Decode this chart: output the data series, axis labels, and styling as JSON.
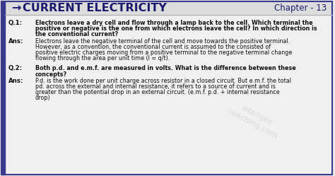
{
  "bg_color": "#e8e8e8",
  "border_color": "#3a3a8c",
  "header_bg": "#dcdcdc",
  "header_text": "CURRENT ELECTRICITY",
  "header_arrow": "→",
  "chapter_text": "Chapter - 13",
  "header_text_color": "#1a1a6e",
  "body_bg": "#f0f0f0",
  "q1_label": "Q.1:",
  "q1_text": "Electrons leave a dry cell and flow through a lamp back to the cell. Which terminal the\npositive or negative is the one from which electrons leave the cell? In which direction is\nthe conventional current?",
  "ans1_label": "Ans:",
  "ans1_text": "Electrons leave the negative terminal of the cell and move towards the positive terminal.\nHowever, as a convention, the conventional current is assumed to the consisted of\npositive electric charges moving from a positive terminal to the negative terminal change\nflowing through the area per unit time (I = q/t).",
  "q2_label": "Q.2:",
  "q2_text": "Both p.d. and e.m.f. are measured in volts. What is the difference between these\nconcepts?",
  "ans2_label": "Ans:",
  "ans2_text": "P.d. is the work done per unit charge across resistor in a closed circuit. But e.m.f. the total\npd. across the external and internal resistance, it refers to a source of current and is\ngreater than the potential drop in an external circuit. (e.m.f. p.d. + internal resistance\ndrop)",
  "watermark": "adamjee\ncoaching.com",
  "label_color": "#111111",
  "body_text_color": "#111111",
  "font_size_header": 11.5,
  "font_size_body": 5.8,
  "font_size_label": 6.2,
  "font_size_chapter": 8.5
}
